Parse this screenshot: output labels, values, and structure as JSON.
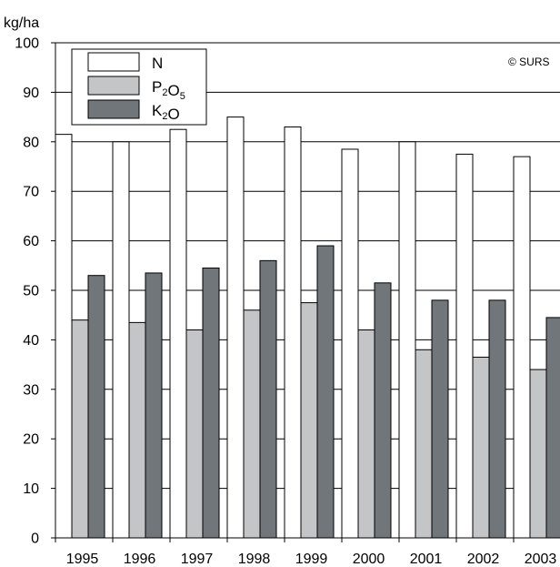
{
  "chart_data": {
    "type": "bar",
    "ylabel": "kg/ha",
    "copyright": "© SURS",
    "ylim": [
      0,
      100
    ],
    "yticks": [
      0,
      10,
      20,
      30,
      40,
      50,
      60,
      70,
      80,
      90,
      100
    ],
    "grid": true,
    "legend_position": "top-left",
    "categories": [
      "1995",
      "1996",
      "1997",
      "1998",
      "1999",
      "2000",
      "2001",
      "2002",
      "2003"
    ],
    "series": [
      {
        "name": "N",
        "label_main": [
          "N"
        ],
        "label_sub": [
          ""
        ],
        "color": "#ffffff",
        "values": [
          81.5,
          80.0,
          82.5,
          85.0,
          83.0,
          78.5,
          80.0,
          77.5,
          77.0
        ]
      },
      {
        "name": "P2O5",
        "label_main": [
          "P",
          "O"
        ],
        "label_sub": [
          "2",
          "5"
        ],
        "color": "#c4c5c7",
        "values": [
          44.0,
          43.5,
          42.0,
          46.0,
          47.5,
          42.0,
          38.0,
          36.5,
          34.0
        ]
      },
      {
        "name": "K2O",
        "label_main": [
          "K",
          "O"
        ],
        "label_sub": [
          "2",
          ""
        ],
        "color": "#70767a",
        "values": [
          53.0,
          53.5,
          54.5,
          56.0,
          59.0,
          51.5,
          48.0,
          48.0,
          44.5
        ]
      }
    ]
  }
}
